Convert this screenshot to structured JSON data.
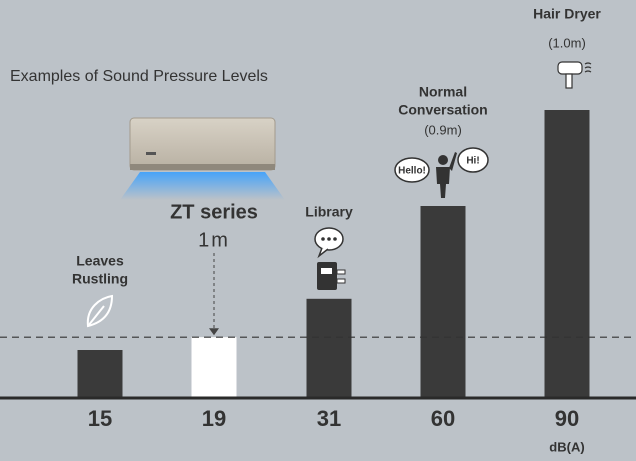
{
  "chart_data": {
    "type": "bar",
    "title": "Examples of Sound Pressure Levels",
    "categories": [
      [
        "Leaves",
        "Rustling"
      ],
      [
        "ZT series"
      ],
      [
        "Library"
      ],
      [
        "Normal",
        "Conversation"
      ],
      [
        "Hair Dryer"
      ]
    ],
    "category_notes": [
      null,
      "1m",
      null,
      "(0.9m)",
      "(1.0m)"
    ],
    "values": [
      15,
      19,
      31,
      60,
      90
    ],
    "colors": [
      "#3a3a3a",
      "#ffffff",
      "#3a3a3a",
      "#3a3a3a",
      "#3a3a3a"
    ],
    "unit": "dB(A)",
    "speech_bubbles": [
      "Hello!",
      "Hi!"
    ]
  }
}
